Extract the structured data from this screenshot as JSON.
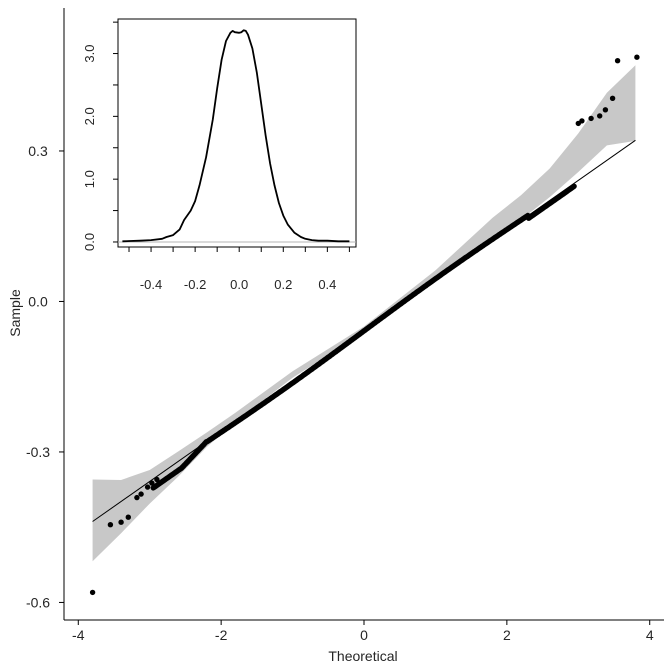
{
  "chart_data": [
    {
      "type": "scatter",
      "subtype": "qq-plot",
      "xlabel": "Theoretical",
      "ylabel": "Sample",
      "xlim": [
        -4.2,
        4.2
      ],
      "ylim": [
        -0.635,
        0.585
      ],
      "xticks": [
        -4,
        -2,
        0,
        2,
        4
      ],
      "xtick_labels": [
        "-4",
        "-2",
        "0",
        "2",
        "4"
      ],
      "yticks": [
        -0.6,
        -0.3,
        0.0,
        0.3
      ],
      "ytick_labels": [
        "-0.6",
        "-0.3",
        "0.0",
        "0.3"
      ],
      "grid": false,
      "reference_line": {
        "slope": 0.1,
        "intercept": -0.0587,
        "x_range": [
          -3.8,
          3.8
        ]
      },
      "confidence_band": {
        "x": [
          -3.8,
          -3.4,
          -3.0,
          -2.6,
          -2.2,
          -1.8,
          -1.0,
          0.0,
          1.0,
          1.8,
          2.2,
          2.6,
          3.0,
          3.4,
          3.8
        ],
        "upper": [
          -0.355,
          -0.356,
          -0.336,
          -0.299,
          -0.261,
          -0.222,
          -0.139,
          -0.05,
          0.062,
          0.167,
          0.212,
          0.265,
          0.335,
          0.416,
          0.471
        ],
        "lower": [
          -0.518,
          -0.462,
          -0.403,
          -0.349,
          -0.29,
          -0.24,
          -0.152,
          -0.062,
          0.04,
          0.121,
          0.163,
          0.208,
          0.258,
          0.311,
          0.32
        ]
      },
      "outlier_points": [
        {
          "x": -3.8,
          "y": -0.58
        },
        {
          "x": -3.55,
          "y": -0.445
        },
        {
          "x": -3.4,
          "y": -0.44
        },
        {
          "x": -3.3,
          "y": -0.43
        },
        {
          "x": -3.18,
          "y": -0.391
        },
        {
          "x": -3.12,
          "y": -0.384
        },
        {
          "x": -3.03,
          "y": -0.37
        },
        {
          "x": -2.97,
          "y": -0.362
        },
        {
          "x": -2.9,
          "y": -0.355
        },
        {
          "x": 3.0,
          "y": 0.355
        },
        {
          "x": 3.05,
          "y": 0.36
        },
        {
          "x": 3.18,
          "y": 0.365
        },
        {
          "x": 3.3,
          "y": 0.37
        },
        {
          "x": 3.38,
          "y": 0.382
        },
        {
          "x": 3.48,
          "y": 0.405
        },
        {
          "x": 3.55,
          "y": 0.48
        },
        {
          "x": 3.82,
          "y": 0.487
        }
      ],
      "colors": {
        "points": "#000000",
        "band": "#c8c8c8",
        "line": "#000000",
        "axes": "#000000"
      }
    },
    {
      "type": "line",
      "subtype": "density-inset",
      "xlabel": "",
      "ylabel": "",
      "xlim": [
        -0.55,
        0.53
      ],
      "ylim": [
        -0.08,
        3.55
      ],
      "xticks": [
        -0.4,
        -0.2,
        0.0,
        0.2,
        0.4
      ],
      "xtick_labels": [
        "-0.4",
        "-0.2",
        "0.0",
        "0.2",
        "0.4"
      ],
      "yticks": [
        0.0,
        1.0,
        2.0,
        3.0
      ],
      "ytick_labels": [
        "0.0",
        "1.0",
        "2.0",
        "3.0"
      ],
      "baseline_y": 0,
      "x": [
        -0.53,
        -0.45,
        -0.4,
        -0.35,
        -0.33,
        -0.31,
        -0.3,
        -0.27,
        -0.25,
        -0.22,
        -0.2,
        -0.18,
        -0.15,
        -0.12,
        -0.1,
        -0.08,
        -0.06,
        -0.04,
        -0.03,
        -0.02,
        0.0,
        0.01,
        0.02,
        0.03,
        0.04,
        0.06,
        0.08,
        0.1,
        0.12,
        0.14,
        0.16,
        0.18,
        0.2,
        0.22,
        0.25,
        0.28,
        0.3,
        0.33,
        0.36,
        0.4,
        0.45,
        0.5
      ],
      "y": [
        0.01,
        0.02,
        0.03,
        0.05,
        0.08,
        0.1,
        0.11,
        0.2,
        0.35,
        0.5,
        0.65,
        0.9,
        1.35,
        1.95,
        2.45,
        2.9,
        3.2,
        3.33,
        3.36,
        3.34,
        3.33,
        3.34,
        3.37,
        3.36,
        3.3,
        3.08,
        2.7,
        2.2,
        1.7,
        1.25,
        0.9,
        0.62,
        0.42,
        0.28,
        0.15,
        0.08,
        0.05,
        0.03,
        0.02,
        0.02,
        0.01,
        0.01
      ],
      "colors": {
        "line": "#000000",
        "baseline": "#b4b4b4",
        "frame": "#000000"
      }
    }
  ]
}
